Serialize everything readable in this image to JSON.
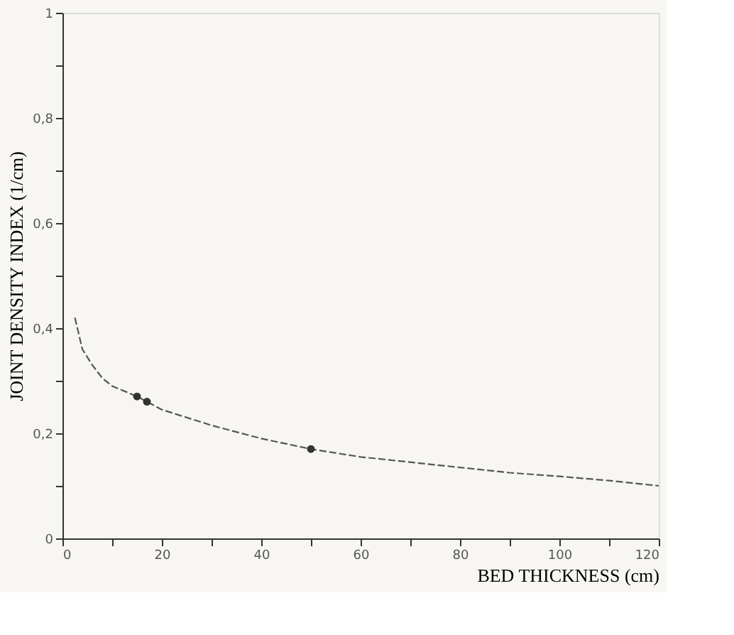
{
  "chart_data": {
    "type": "line",
    "xlabel": "BED THICKNESS (cm)",
    "ylabel": "JOINT DENSITY INDEX (1/cm)",
    "xlim": [
      0,
      120
    ],
    "ylim": [
      0,
      1
    ],
    "xticks": [
      0,
      {
        "value": 10,
        "label": null
      },
      20,
      {
        "value": 30,
        "label": null
      },
      40,
      {
        "value": 50,
        "label": null
      },
      60,
      {
        "value": 70,
        "label": null
      },
      80,
      {
        "value": 90,
        "label": null
      },
      100,
      {
        "value": 110,
        "label": null
      },
      120
    ],
    "yticks": [
      0,
      {
        "value": 0.1,
        "label": null
      },
      {
        "value": 0.2,
        "label": "0,2"
      },
      {
        "value": 0.3,
        "label": null
      },
      {
        "value": 0.4,
        "label": "0,4"
      },
      {
        "value": 0.5,
        "label": null
      },
      {
        "value": 0.6,
        "label": "0,6"
      },
      {
        "value": 0.7,
        "label": null
      },
      {
        "value": 0.8,
        "label": "0,8"
      },
      {
        "value": 0.9,
        "label": null
      },
      1
    ],
    "grid": false,
    "series": [
      {
        "color": "#555555",
        "line_style": "dashed",
        "marker": "none",
        "x": [
          2.5,
          4,
          6,
          8,
          10,
          15,
          17,
          20,
          30,
          40,
          50,
          60,
          70,
          80,
          90,
          100,
          110,
          120
        ],
        "values": [
          0.42,
          0.36,
          0.33,
          0.305,
          0.29,
          0.27,
          0.26,
          0.245,
          0.215,
          0.19,
          0.17,
          0.155,
          0.145,
          0.135,
          0.125,
          0.118,
          0.11,
          0.1
        ]
      },
      {
        "type": "scatter",
        "color": "#333333",
        "marker": "circle",
        "x": [
          15,
          17,
          50
        ],
        "values": [
          0.27,
          0.26,
          0.17
        ]
      }
    ]
  }
}
